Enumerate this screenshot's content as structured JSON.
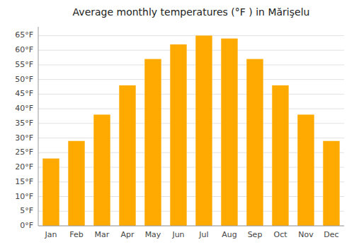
{
  "chart_data": {
    "type": "bar",
    "title": "Average monthly temperatures (°F ) in Mărişelu",
    "categories": [
      "Jan",
      "Feb",
      "Mar",
      "Apr",
      "May",
      "Jun",
      "Jul",
      "Aug",
      "Sep",
      "Oct",
      "Nov",
      "Dec"
    ],
    "values": [
      23,
      29,
      38,
      48,
      57,
      62,
      65,
      64,
      57,
      48,
      38,
      29
    ],
    "color": "#FFAA00",
    "ylim": [
      0,
      68
    ],
    "yticks": [
      {
        "value": 0,
        "label": "0°F"
      },
      {
        "value": 5,
        "label": "5°F"
      },
      {
        "value": 10,
        "label": "10°F"
      },
      {
        "value": 15,
        "label": "15°F"
      },
      {
        "value": 20,
        "label": "20°F"
      },
      {
        "value": 25,
        "label": "25°F"
      },
      {
        "value": 30,
        "label": "30°F"
      },
      {
        "value": 35,
        "label": "35°F"
      },
      {
        "value": 40,
        "label": "40°F"
      },
      {
        "value": 45,
        "label": "45°F"
      },
      {
        "value": 50,
        "label": "50°F"
      },
      {
        "value": 55,
        "label": "55°F"
      },
      {
        "value": 60,
        "label": "60°F"
      },
      {
        "value": 65,
        "label": "65°F"
      }
    ],
    "grid": true
  }
}
